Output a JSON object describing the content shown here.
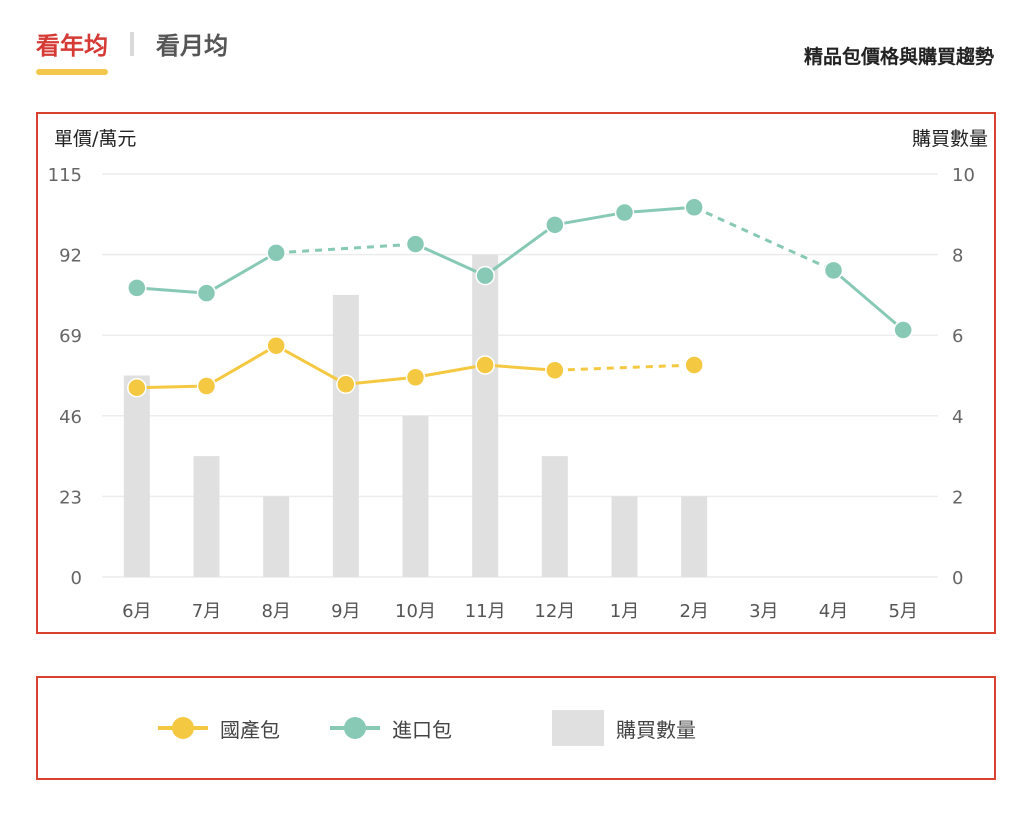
{
  "tabs": [
    {
      "label": "看年均",
      "active": true
    },
    {
      "label": "看月均",
      "active": false
    }
  ],
  "colors": {
    "domestic": "#f5c842",
    "imported": "#88c9b6",
    "bars": "#e0e0e0",
    "active_tab": "#d53a35",
    "frame": "#d9402f"
  },
  "chart_data": {
    "type": "bar",
    "title": "精品包價格與購買趨勢",
    "y_left_label": "單價/萬元",
    "y_right_label": "購買數量",
    "y_left_ticks": [
      "115",
      "92",
      "69",
      "46",
      "23",
      "0"
    ],
    "y_right_ticks": [
      "10",
      "8",
      "6",
      "4",
      "2",
      "0"
    ],
    "y_left_range": [
      0,
      115
    ],
    "y_right_range": [
      0,
      10
    ],
    "categories": [
      "6月",
      "7月",
      "8月",
      "9月",
      "10月",
      "11月",
      "12月",
      "1月",
      "2月",
      "3月",
      "4月",
      "5月"
    ],
    "grid": true,
    "legend_position": "bottom",
    "bars": {
      "name": "購買數量",
      "axis": "right",
      "values": [
        5,
        3,
        2,
        7,
        4,
        8,
        3,
        2,
        2,
        null,
        null,
        null
      ]
    },
    "series": [
      {
        "name": "國產包",
        "axis": "left",
        "values": [
          54,
          54.5,
          66,
          55,
          57,
          60.5,
          59,
          null,
          60.5,
          null,
          null,
          null
        ]
      },
      {
        "name": "進口包",
        "axis": "left",
        "values": [
          82.5,
          81,
          92.5,
          null,
          95,
          86,
          100.5,
          104,
          105.5,
          null,
          87.5,
          70.5
        ]
      }
    ]
  }
}
